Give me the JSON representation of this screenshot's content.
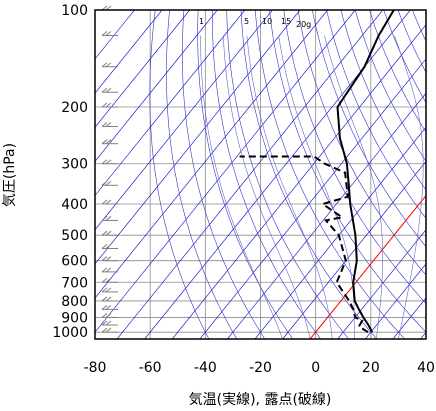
{
  "chart_data": {
    "type": "line",
    "chart_kind": "skew-T log-P thermodynamic diagram",
    "xlabel": "気温(実線), 露点(破線)",
    "ylabel": "気圧(hPa)",
    "y_scale": "log",
    "y_inverted": true,
    "ylim": [
      1050,
      100
    ],
    "xlim": [
      -80,
      40
    ],
    "x_ticks": [
      -80,
      -60,
      -40,
      -20,
      0,
      20,
      40
    ],
    "y_ticks": [
      100,
      200,
      300,
      400,
      500,
      600,
      700,
      800,
      900,
      1000
    ],
    "mixing_ratio_labels": [
      "1",
      "5",
      "10",
      "15",
      "20g"
    ],
    "colors": {
      "temperature": "#000000",
      "dewpoint": "#000000",
      "isotherm": "#0000cc",
      "dry_adiabat": "#3333cc",
      "moist_adiabat": "#6666cc",
      "zero_isotherm": "#ff0000",
      "wind_barb": "#808080"
    },
    "series": [
      {
        "name": "",
        "style": "solid",
        "pressure": [
          1000,
          950,
          900,
          850,
          800,
          700,
          600,
          500,
          400,
          350,
          300,
          250,
          200,
          150,
          120,
          100
        ],
        "values": [
          20.5,
          17,
          13,
          9,
          5,
          -1,
          -6,
          -14,
          -25,
          -31,
          -38,
          -48,
          -58,
          -60,
          -64,
          -66
        ]
      },
      {
        "name": "",
        "style": "dashed",
        "pressure": [
          1000,
          960,
          920,
          900,
          850,
          800,
          700,
          600,
          500,
          450,
          440,
          400,
          380,
          320,
          300,
          285,
          285
        ],
        "values": [
          19,
          14,
          13.5,
          10,
          7,
          3,
          -7,
          -10,
          -20,
          -29,
          -24,
          -35,
          -28,
          -36,
          -46,
          -52,
          -79
        ]
      }
    ],
    "wind_barb_pressures": [
      100,
      120,
      150,
      180,
      200,
      230,
      260,
      300,
      350,
      400,
      450,
      500,
      550,
      600,
      650,
      700,
      750,
      800,
      850,
      900,
      950,
      1000
    ]
  }
}
